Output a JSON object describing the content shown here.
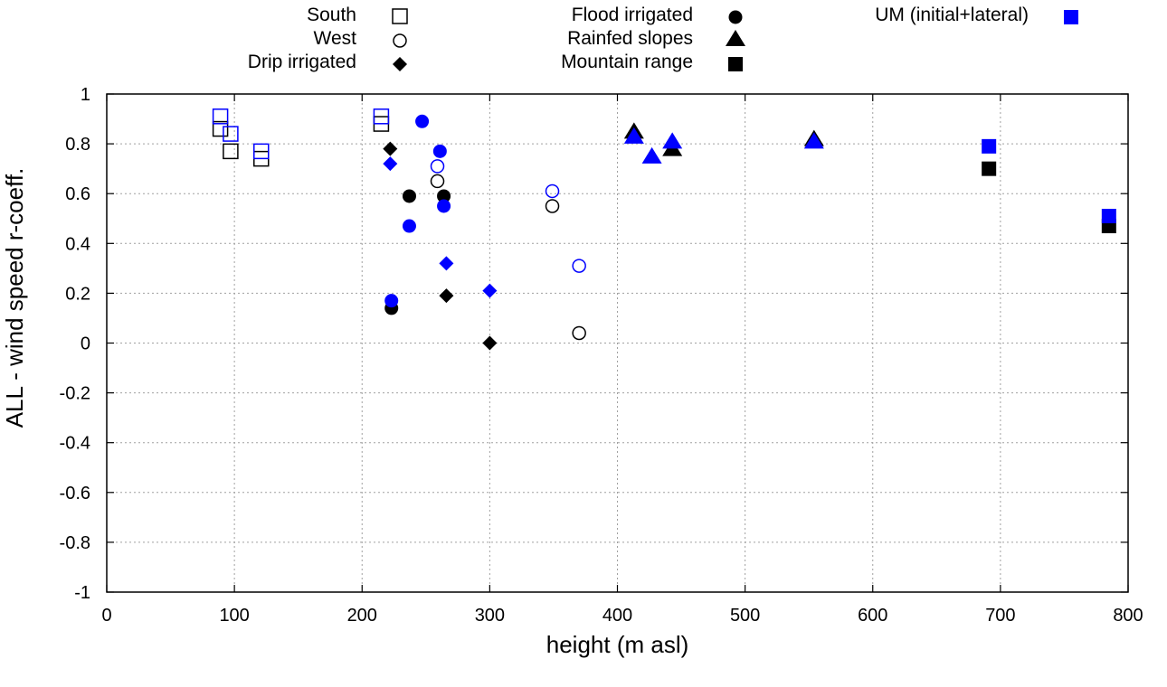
{
  "chart_data": {
    "type": "scatter",
    "title": "",
    "xlabel": "height (m asl)",
    "ylabel": "ALL - wind speed r-coeff.",
    "xlim": [
      0,
      800
    ],
    "ylim": [
      -1,
      1
    ],
    "xticks": [
      "0",
      "100",
      "200",
      "300",
      "400",
      "500",
      "600",
      "700",
      "800"
    ],
    "yticks": [
      "1",
      "0.8",
      "0.6",
      "0.4",
      "0.2",
      "0",
      "-0.2",
      "-0.4",
      "-0.6",
      "-0.8",
      "-1"
    ],
    "xtick_values": [
      0,
      100,
      200,
      300,
      400,
      500,
      600,
      700,
      800
    ],
    "ytick_values": [
      1,
      0.8,
      0.6,
      0.4,
      0.2,
      0,
      -0.2,
      -0.4,
      -0.6,
      -0.8,
      -1
    ],
    "grid": true,
    "legend_placement": "top, outside plot",
    "colors": {
      "observed": "#000000",
      "model": "#0000ff",
      "grid": "#a0a0a0"
    },
    "legend": [
      {
        "label": "South",
        "marker": "open-square",
        "color": "#000000"
      },
      {
        "label": "West",
        "marker": "open-circle",
        "color": "#000000"
      },
      {
        "label": "Drip irrigated",
        "marker": "filled-diamond",
        "color": "#000000"
      },
      {
        "label": "Flood irrigated",
        "marker": "filled-circle",
        "color": "#000000"
      },
      {
        "label": "Rainfed slopes",
        "marker": "filled-triangle",
        "color": "#000000"
      },
      {
        "label": "Mountain range",
        "marker": "filled-square",
        "color": "#000000"
      },
      {
        "label": "UM (initial+lateral)",
        "marker": "filled-square",
        "color": "#0000ff"
      }
    ],
    "series": [
      {
        "name": "South",
        "marker": "open-square",
        "color": "#000000",
        "points": [
          [
            89,
            0.86
          ],
          [
            97,
            0.77
          ],
          [
            121,
            0.74
          ],
          [
            215,
            0.88
          ]
        ]
      },
      {
        "name": "South (UM)",
        "marker": "open-square",
        "color": "#0000ff",
        "points": [
          [
            89,
            0.91
          ],
          [
            97,
            0.84
          ],
          [
            121,
            0.77
          ],
          [
            215,
            0.91
          ]
        ]
      },
      {
        "name": "West",
        "marker": "open-circle",
        "color": "#000000",
        "points": [
          [
            259,
            0.65
          ],
          [
            349,
            0.55
          ],
          [
            370,
            0.04
          ]
        ]
      },
      {
        "name": "West (UM)",
        "marker": "open-circle",
        "color": "#0000ff",
        "points": [
          [
            259,
            0.71
          ],
          [
            349,
            0.61
          ],
          [
            370,
            0.31
          ]
        ]
      },
      {
        "name": "Drip irrigated",
        "marker": "filled-diamond",
        "color": "#000000",
        "points": [
          [
            222,
            0.78
          ],
          [
            266,
            0.19
          ],
          [
            300,
            0.0
          ]
        ]
      },
      {
        "name": "Drip irrigated (UM)",
        "marker": "filled-diamond",
        "color": "#0000ff",
        "points": [
          [
            222,
            0.72
          ],
          [
            266,
            0.32
          ],
          [
            300,
            0.21
          ]
        ]
      },
      {
        "name": "Flood irrigated",
        "marker": "filled-circle",
        "color": "#000000",
        "points": [
          [
            223,
            0.14
          ],
          [
            237,
            0.59
          ],
          [
            264,
            0.59
          ]
        ]
      },
      {
        "name": "Flood irrigated (UM)",
        "marker": "filled-circle",
        "color": "#0000ff",
        "points": [
          [
            223,
            0.17
          ],
          [
            237,
            0.47
          ],
          [
            247,
            0.89
          ],
          [
            261,
            0.77
          ],
          [
            264,
            0.55
          ]
        ]
      },
      {
        "name": "Rainfed slopes",
        "marker": "filled-triangle",
        "color": "#000000",
        "points": [
          [
            413,
            0.85
          ],
          [
            443,
            0.78
          ],
          [
            554,
            0.82
          ]
        ]
      },
      {
        "name": "Rainfed slopes (UM)",
        "marker": "filled-triangle",
        "color": "#0000ff",
        "points": [
          [
            413,
            0.83
          ],
          [
            427,
            0.75
          ],
          [
            443,
            0.81
          ],
          [
            554,
            0.81
          ]
        ]
      },
      {
        "name": "Mountain range",
        "marker": "filled-square",
        "color": "#000000",
        "points": [
          [
            691,
            0.7
          ],
          [
            785,
            0.47
          ]
        ]
      },
      {
        "name": "Mountain range (UM)",
        "marker": "filled-square",
        "color": "#0000ff",
        "points": [
          [
            691,
            0.79
          ],
          [
            785,
            0.51
          ]
        ]
      }
    ]
  }
}
